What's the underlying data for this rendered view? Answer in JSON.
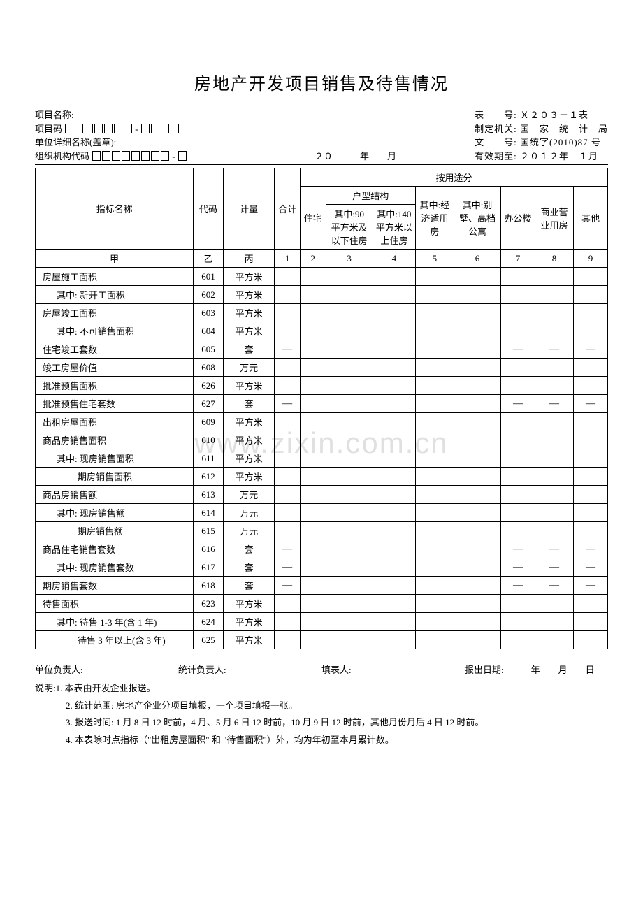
{
  "title": "房地产开发项目销售及待售情况",
  "header": {
    "left": [
      "项目名称:",
      "项目码",
      "单位详细名称(盖章):",
      "组织机构代码"
    ],
    "right": {
      "tableNo": "表　　号: Ｘ２０３－１表",
      "agency": "制定机关: 国　家　统　计　局",
      "docNo": "文　　号: 国统字(2010)87 号",
      "validUntil": "有效期至: ２０１２年　１月"
    },
    "center": "２０　　　年　　月"
  },
  "columns": {
    "indicatorName": "指标名称",
    "code": "代码",
    "unit": "计量",
    "total": "合计",
    "byUse": "按用途分",
    "residence": "住宅",
    "houseType": "户型结构",
    "under90": "其中:90 平方米及以下住房",
    "over140": "其中:140平方米以上住房",
    "economic": "其中:经济适用房",
    "villa": "其中:别墅、高档公寓",
    "office": "办公楼",
    "commercial": "商业营业用房",
    "other": "其他",
    "letterRow": [
      "甲",
      "乙",
      "丙",
      "1",
      "2",
      "3",
      "4",
      "5",
      "6",
      "7",
      "8",
      "9"
    ]
  },
  "rows": [
    {
      "name": "房屋施工面积",
      "code": "601",
      "unit": "平方米",
      "indent": 0,
      "dashes": []
    },
    {
      "name": "其中: 新开工面积",
      "code": "602",
      "unit": "平方米",
      "indent": 1,
      "dashes": []
    },
    {
      "name": "房屋竣工面积",
      "code": "603",
      "unit": "平方米",
      "indent": 0,
      "dashes": []
    },
    {
      "name": "其中: 不可销售面积",
      "code": "604",
      "unit": "平方米",
      "indent": 1,
      "dashes": []
    },
    {
      "name": "住宅竣工套数",
      "code": "605",
      "unit": "套",
      "indent": 0,
      "dashes": [
        1,
        7,
        8,
        9
      ]
    },
    {
      "name": "竣工房屋价值",
      "code": "608",
      "unit": "万元",
      "indent": 0,
      "dashes": []
    },
    {
      "name": "批准预售面积",
      "code": "626",
      "unit": "平方米",
      "indent": 0,
      "dashes": []
    },
    {
      "name": "批准预售住宅套数",
      "code": "627",
      "unit": "套",
      "indent": 0,
      "dashes": [
        1,
        7,
        8,
        9
      ]
    },
    {
      "name": "出租房屋面积",
      "code": "609",
      "unit": "平方米",
      "indent": 0,
      "dashes": []
    },
    {
      "name": "商品房销售面积",
      "code": "610",
      "unit": "平方米",
      "indent": 0,
      "dashes": []
    },
    {
      "name": "其中: 现房销售面积",
      "code": "611",
      "unit": "平方米",
      "indent": 1,
      "dashes": []
    },
    {
      "name": "期房销售面积",
      "code": "612",
      "unit": "平方米",
      "indent": 2,
      "dashes": []
    },
    {
      "name": "商品房销售额",
      "code": "613",
      "unit": "万元",
      "indent": 0,
      "dashes": []
    },
    {
      "name": "其中: 现房销售额",
      "code": "614",
      "unit": "万元",
      "indent": 1,
      "dashes": []
    },
    {
      "name": "期房销售额",
      "code": "615",
      "unit": "万元",
      "indent": 2,
      "dashes": []
    },
    {
      "name": "商品住宅销售套数",
      "code": "616",
      "unit": "套",
      "indent": 0,
      "dashes": [
        1,
        7,
        8,
        9
      ]
    },
    {
      "name": "其中: 现房销售套数",
      "code": "617",
      "unit": "套",
      "indent": 1,
      "dashes": [
        1,
        7,
        8,
        9
      ]
    },
    {
      "name": "期房销售套数",
      "code": "618",
      "unit": "套",
      "indent": 0,
      "dashes": [
        1,
        7,
        8,
        9
      ]
    },
    {
      "name": "待售面积",
      "code": "623",
      "unit": "平方米",
      "indent": 0,
      "dashes": []
    },
    {
      "name": "其中: 待售 1-3 年(含 1 年)",
      "code": "624",
      "unit": "平方米",
      "indent": 1,
      "dashes": []
    },
    {
      "name": "待售 3 年以上(含 3 年)",
      "code": "625",
      "unit": "平方米",
      "indent": 2,
      "dashes": []
    }
  ],
  "footer": {
    "unitHead": "单位负责人:",
    "statHead": "统计负责人:",
    "filler": "填表人:",
    "reportDate": "报出日期:　　　年　　月　　日"
  },
  "notes": {
    "label": "说明:",
    "items": [
      "1. 本表由开发企业报送。",
      "2. 统计范围: 房地产企业分项目填报，一个项目填报一张。",
      "3. 报送时间: 1 月 8 日 12 时前，4 月、5 月 6 日 12 时前，10 月 9 日 12 时前，其他月份月后 4 日 12 时前。",
      "4. 本表除时点指标（\"出租房屋面积\" 和 \"待售面积\"）外，均为年初至本月累计数。"
    ]
  },
  "watermark": "www.zixin.com.cn",
  "style": {
    "background_color": "#ffffff",
    "text_color": "#000000",
    "border_color": "#000000",
    "watermark_color": "rgba(160,160,160,0.32)",
    "title_fontsize": 24,
    "body_fontsize": 13,
    "font_family": "SimSun"
  }
}
